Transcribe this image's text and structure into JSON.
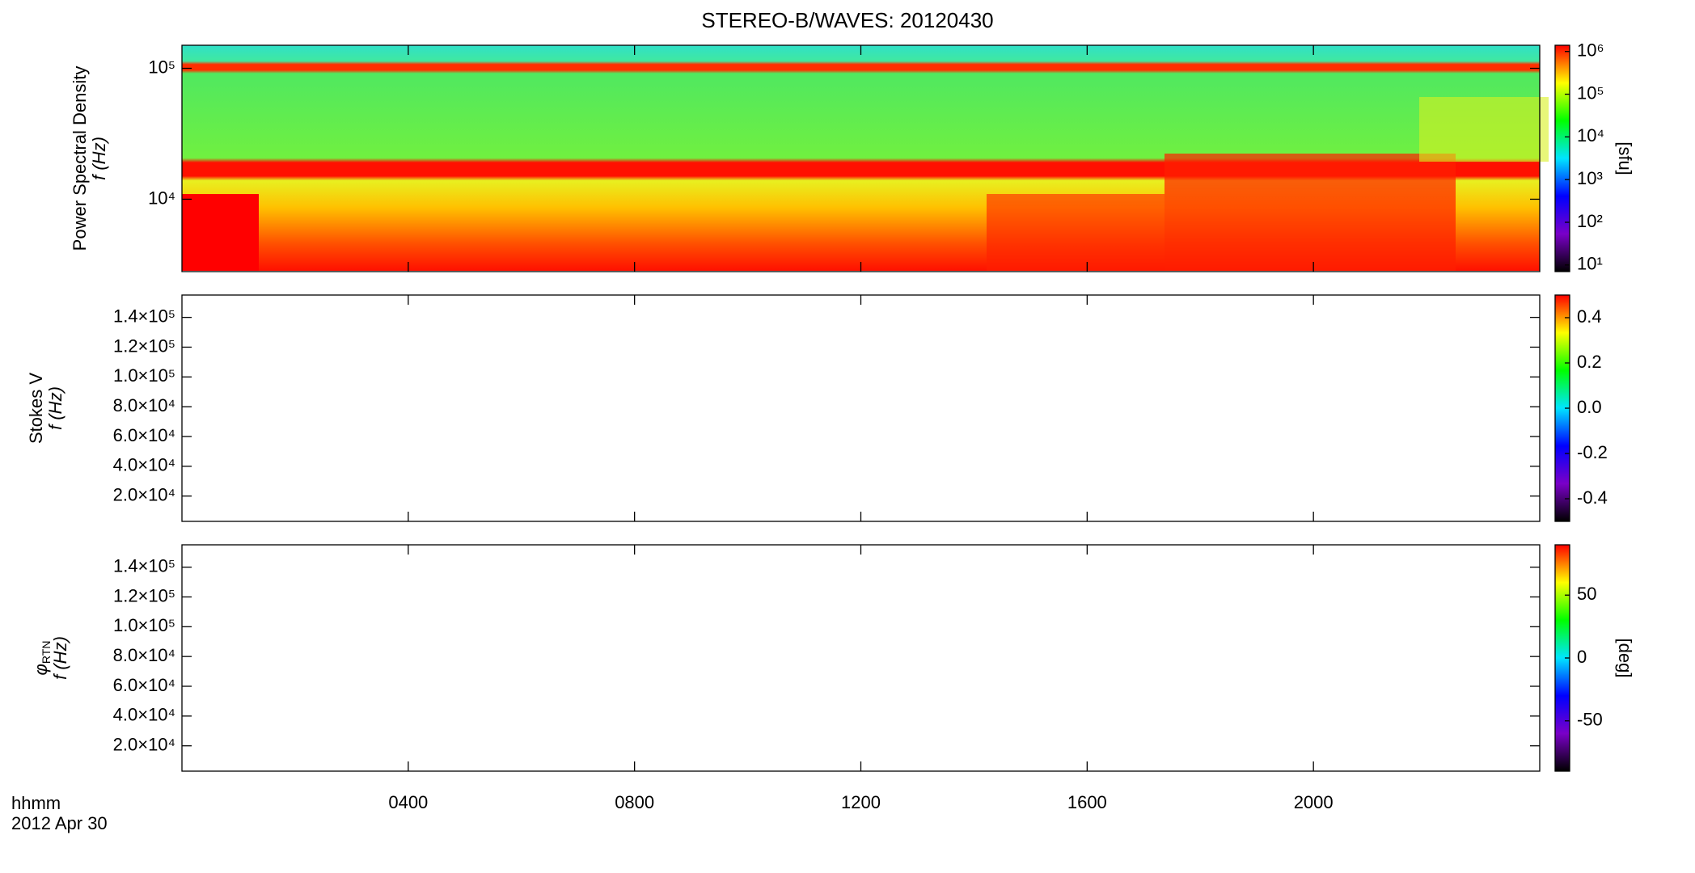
{
  "chart_data": [
    {
      "type": "spectrogram",
      "title": "STEREO-B/WAVES: 20120430",
      "ylabel": "Power Spectral Density",
      "ylabel_unit": "f (Hz)",
      "ylog": true,
      "ylim": [
        2800,
        150000
      ],
      "yticks": [
        {
          "value": 10000,
          "label": "10⁴"
        },
        {
          "value": 100000,
          "label": "10⁵"
        }
      ],
      "colorbar_label": "[sfu]",
      "clog": true,
      "clim": [
        7,
        1400000
      ],
      "cticks": [
        {
          "value": 10,
          "label": "10¹"
        },
        {
          "value": 100,
          "label": "10²"
        },
        {
          "value": 1000,
          "label": "10³"
        },
        {
          "value": 10000,
          "label": "10⁴"
        },
        {
          "value": 100000,
          "label": "10⁵"
        },
        {
          "value": 1000000,
          "label": "10⁶"
        }
      ],
      "colormap": [
        "#000000",
        "#7a00c8",
        "#0000ff",
        "#00e5ff",
        "#00ff00",
        "#ffff00",
        "#ff0000"
      ]
    },
    {
      "type": "spectrogram",
      "ylabel": "Stokes V",
      "ylabel_unit": "f (Hz)",
      "ylog": false,
      "ylim": [
        3000,
        155000
      ],
      "yticks": [
        {
          "value": 20000,
          "label": "2.0×10⁴"
        },
        {
          "value": 40000,
          "label": "4.0×10⁴"
        },
        {
          "value": 60000,
          "label": "6.0×10⁴"
        },
        {
          "value": 80000,
          "label": "8.0×10⁴"
        },
        {
          "value": 100000,
          "label": "1.0×10⁵"
        },
        {
          "value": 120000,
          "label": "1.2×10⁵"
        },
        {
          "value": 140000,
          "label": "1.4×10⁵"
        }
      ],
      "clog": false,
      "clim": [
        -0.5,
        0.5
      ],
      "cticks": [
        {
          "value": -0.4,
          "label": "-0.4"
        },
        {
          "value": -0.2,
          "label": "-0.2"
        },
        {
          "value": 0,
          "label": "0.0"
        },
        {
          "value": 0.2,
          "label": "0.2"
        },
        {
          "value": 0.4,
          "label": "0.4"
        }
      ],
      "colormap": [
        "#000000",
        "#7a00c8",
        "#0000ff",
        "#00e5ff",
        "#00ff00",
        "#ffff00",
        "#ff0000"
      ]
    },
    {
      "type": "spectrogram",
      "ylabel": "φ",
      "ylabel_sub": "RTN",
      "ylabel_unit": "f (Hz)",
      "ylog": false,
      "ylim": [
        3000,
        155000
      ],
      "yticks": [
        {
          "value": 20000,
          "label": "2.0×10⁴"
        },
        {
          "value": 40000,
          "label": "4.0×10⁴"
        },
        {
          "value": 60000,
          "label": "6.0×10⁴"
        },
        {
          "value": 80000,
          "label": "8.0×10⁴"
        },
        {
          "value": 100000,
          "label": "1.0×10⁵"
        },
        {
          "value": 120000,
          "label": "1.2×10⁵"
        },
        {
          "value": 140000,
          "label": "1.4×10⁵"
        }
      ],
      "colorbar_label": "[deg]",
      "clog": false,
      "clim": [
        -90,
        90
      ],
      "cticks": [
        -50,
        0,
        50
      ],
      "colormap": [
        "#000000",
        "#7a00c8",
        "#0000ff",
        "#00e5ff",
        "#00ff00",
        "#ffff00",
        "#ff0000"
      ],
      "xlim": [
        0,
        24
      ],
      "xticks": [
        {
          "value": 4,
          "label": "0400"
        },
        {
          "value": 8,
          "label": "0800"
        },
        {
          "value": 12,
          "label": "1200"
        },
        {
          "value": 16,
          "label": "1600"
        },
        {
          "value": 20,
          "label": "2000"
        }
      ],
      "xlabel": "hhmm",
      "date": "2012 Apr 30"
    }
  ]
}
